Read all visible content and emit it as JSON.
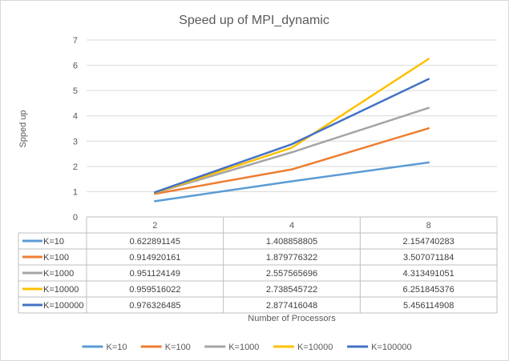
{
  "chart_data": {
    "type": "line",
    "title": "Speed up of MPI_dynamic",
    "xlabel": "Number of Processors",
    "ylabel": "Spped up",
    "categories": [
      "2",
      "4",
      "8"
    ],
    "ylim": [
      0,
      7
    ],
    "yticks": [
      "0",
      "1",
      "2",
      "3",
      "4",
      "5",
      "6",
      "7"
    ],
    "grid": true,
    "legend_position": "bottom",
    "data_table": true,
    "series": [
      {
        "name": "K=10",
        "color": "#5b9bd5",
        "values": [
          0.622891145,
          1.408858805,
          2.154740283
        ],
        "labels": [
          "0.622891145",
          "1.408858805",
          "2.154740283"
        ]
      },
      {
        "name": "K=100",
        "color": "#ed7d31",
        "values": [
          0.914920161,
          1.879776322,
          3.507071184
        ],
        "labels": [
          "0.914920161",
          "1.879776322",
          "3.507071184"
        ]
      },
      {
        "name": "K=1000",
        "color": "#a5a5a5",
        "values": [
          0.951124149,
          2.557565696,
          4.313491051
        ],
        "labels": [
          "0.951124149",
          "2.557565696",
          "4.313491051"
        ]
      },
      {
        "name": "K=10000",
        "color": "#ffc000",
        "values": [
          0.959516022,
          2.738545722,
          6.251845376
        ],
        "labels": [
          "0.959516022",
          "2.738545722",
          "6.251845376"
        ]
      },
      {
        "name": "K=100000",
        "color": "#4472c4",
        "values": [
          0.976326485,
          2.877416048,
          5.456114908
        ],
        "labels": [
          "0.976326485",
          "2.877416048",
          "5.456114908"
        ]
      }
    ]
  }
}
